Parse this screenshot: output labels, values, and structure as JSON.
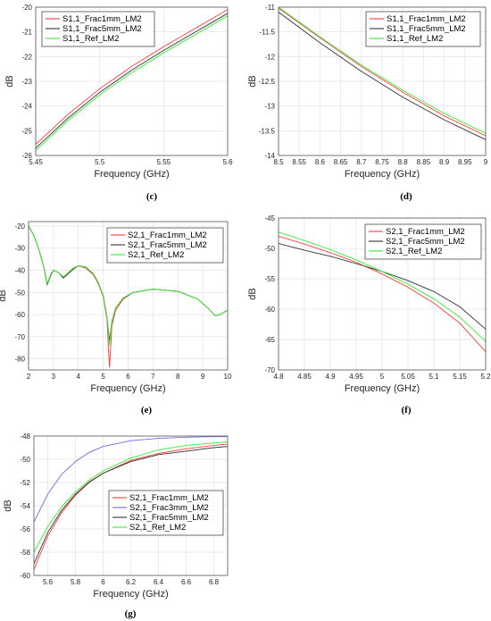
{
  "chart_data": [
    {
      "id": "c",
      "type": "line",
      "panel_label": "(c)",
      "xlabel": "Frequency (GHz)",
      "ylabel": "dB",
      "xlim": [
        5.45,
        5.6
      ],
      "ylim": [
        -26,
        -20
      ],
      "xticks": [
        5.45,
        5.5,
        5.55,
        5.6
      ],
      "xtick_labels": [
        "5.45",
        "5.5",
        "5.55",
        "5.6"
      ],
      "yticks": [
        -26,
        -25,
        -24,
        -23,
        -22,
        -21,
        -20
      ],
      "ytick_labels": [
        "-26",
        "-25",
        "-24",
        "-23",
        "-22",
        "-21",
        "-20"
      ],
      "grid": true,
      "legend_position": "top-left",
      "series": [
        {
          "name": "S1,1_Frac1mm_LM2",
          "color": "#ff3b3b",
          "x": [
            5.45,
            5.475,
            5.5,
            5.525,
            5.55,
            5.575,
            5.6
          ],
          "y": [
            -25.55,
            -24.35,
            -23.3,
            -22.4,
            -21.6,
            -20.85,
            -20.1
          ]
        },
        {
          "name": "S1,1_Frac5mm_LM2",
          "color": "#333333",
          "x": [
            5.45,
            5.475,
            5.5,
            5.525,
            5.55,
            5.575,
            5.6
          ],
          "y": [
            -25.7,
            -24.5,
            -23.45,
            -22.55,
            -21.75,
            -21.0,
            -20.25
          ]
        },
        {
          "name": "S1,1_Ref_LM2",
          "color": "#33ee33",
          "x": [
            5.45,
            5.475,
            5.5,
            5.525,
            5.55,
            5.575,
            5.6
          ],
          "y": [
            -25.8,
            -24.6,
            -23.55,
            -22.65,
            -21.85,
            -21.1,
            -20.35
          ]
        }
      ]
    },
    {
      "id": "d",
      "type": "line",
      "panel_label": "(d)",
      "xlabel": "Frequency (GHz)",
      "ylabel": "dB",
      "xlim": [
        8.5,
        9
      ],
      "ylim": [
        -14,
        -11
      ],
      "xticks": [
        8.5,
        8.55,
        8.6,
        8.65,
        8.7,
        8.75,
        8.8,
        8.85,
        8.9,
        8.95,
        9
      ],
      "xtick_labels": [
        "8.5",
        "8.55",
        "8.6",
        "8.65",
        "8.7",
        "8.75",
        "8.8",
        "8.85",
        "8.9",
        "8.95",
        "9"
      ],
      "yticks": [
        -14,
        -13.5,
        -13,
        -12.5,
        -12,
        -11.5,
        -11
      ],
      "ytick_labels": [
        "-14",
        "-13.5",
        "-13",
        "-12.5",
        "-12",
        "-11.5",
        "-11"
      ],
      "grid": true,
      "legend_position": "top-right",
      "series": [
        {
          "name": "S1,1_Frac1mm_LM2",
          "color": "#ff3b3b",
          "x": [
            8.5,
            8.6,
            8.7,
            8.8,
            8.9,
            9.0
          ],
          "y": [
            -11.02,
            -11.62,
            -12.2,
            -12.72,
            -13.2,
            -13.6
          ]
        },
        {
          "name": "S1,1_Frac5mm_LM2",
          "color": "#333333",
          "x": [
            8.5,
            8.6,
            8.7,
            8.8,
            8.9,
            9.0
          ],
          "y": [
            -11.1,
            -11.72,
            -12.3,
            -12.82,
            -13.28,
            -13.68
          ]
        },
        {
          "name": "S1,1_Ref_LM2",
          "color": "#33ee33",
          "x": [
            8.5,
            8.6,
            8.7,
            8.8,
            8.9,
            9.0
          ],
          "y": [
            -11.0,
            -11.6,
            -12.17,
            -12.68,
            -13.15,
            -13.55
          ]
        }
      ]
    },
    {
      "id": "e",
      "type": "line",
      "panel_label": "(e)",
      "xlabel": "Frequency (GHz)",
      "ylabel": "dB",
      "xlim": [
        2,
        10
      ],
      "ylim": [
        -85,
        -18
      ],
      "xticks": [
        2,
        3,
        4,
        5,
        6,
        7,
        8,
        9,
        10
      ],
      "xtick_labels": [
        "2",
        "3",
        "4",
        "5",
        "6",
        "7",
        "8",
        "9",
        "10"
      ],
      "yticks": [
        -80,
        -70,
        -60,
        -50,
        -40,
        -30,
        -20
      ],
      "ytick_labels": [
        "-80",
        "-70",
        "-60",
        "-50",
        "-40",
        "-30",
        "-20"
      ],
      "grid": true,
      "legend_position": "top-right",
      "series": [
        {
          "name": "S2,1_Frac1mm_LM2",
          "color": "#ff3b3b",
          "x": [
            2,
            2.2,
            2.4,
            2.6,
            2.75,
            2.9,
            3.0,
            3.2,
            3.4,
            3.6,
            3.8,
            4.0,
            4.3,
            4.6,
            4.8,
            5.0,
            5.15,
            5.25,
            5.35,
            5.5,
            5.8,
            6.2,
            7.0,
            8.0,
            8.8,
            9.2,
            9.5,
            9.7,
            10
          ],
          "y": [
            -20,
            -24,
            -30,
            -38,
            -46,
            -42,
            -40,
            -41,
            -43,
            -41,
            -39,
            -38,
            -39,
            -42,
            -46,
            -52,
            -62,
            -84,
            -65,
            -58,
            -53,
            -50,
            -48.5,
            -49.5,
            -53,
            -57,
            -60.5,
            -60,
            -58
          ]
        },
        {
          "name": "S2,1_Frac5mm_LM2",
          "color": "#333333",
          "x": [
            2,
            2.2,
            2.4,
            2.6,
            2.75,
            2.9,
            3.0,
            3.2,
            3.4,
            3.6,
            3.8,
            4.0,
            4.3,
            4.6,
            4.8,
            5.0,
            5.15,
            5.25,
            5.35,
            5.5,
            5.8,
            6.2,
            7.0,
            8.0,
            8.8,
            9.2,
            9.5,
            9.7,
            10
          ],
          "y": [
            -20,
            -24,
            -30,
            -38,
            -46.5,
            -42,
            -40,
            -41,
            -43.5,
            -41.5,
            -39.5,
            -38,
            -38.5,
            -41.5,
            -45.5,
            -51.5,
            -61,
            -72,
            -63,
            -57,
            -52.5,
            -50,
            -48.5,
            -49.5,
            -53,
            -57,
            -60.5,
            -60,
            -58
          ]
        },
        {
          "name": "S2,1_Ref_LM2",
          "color": "#33ee33",
          "x": [
            2,
            2.2,
            2.4,
            2.6,
            2.75,
            2.9,
            3.0,
            3.2,
            3.4,
            3.6,
            3.8,
            4.0,
            4.3,
            4.6,
            4.8,
            5.0,
            5.15,
            5.25,
            5.35,
            5.5,
            5.8,
            6.2,
            7.0,
            8.0,
            8.8,
            9.2,
            9.5,
            9.7,
            10
          ],
          "y": [
            -20,
            -24,
            -30,
            -38,
            -46,
            -41.5,
            -40,
            -41,
            -43,
            -41,
            -39,
            -38,
            -38.5,
            -41.5,
            -45.5,
            -51.5,
            -61,
            -74,
            -63,
            -57,
            -52.5,
            -50,
            -48.5,
            -49.5,
            -53,
            -57,
            -60.5,
            -60,
            -58
          ]
        }
      ]
    },
    {
      "id": "f",
      "type": "line",
      "panel_label": "(f)",
      "xlabel": "Frequency (GHz)",
      "ylabel": "dB",
      "xlim": [
        4.8,
        5.2
      ],
      "ylim": [
        -70,
        -45
      ],
      "xticks": [
        4.8,
        4.85,
        4.9,
        4.95,
        5,
        5.05,
        5.1,
        5.15,
        5.2
      ],
      "xtick_labels": [
        "4.8",
        "4.85",
        "4.9",
        "4.95",
        "5",
        "5.05",
        "5.1",
        "5.15",
        "5.2"
      ],
      "yticks": [
        -70,
        -65,
        -60,
        -55,
        -50,
        -45
      ],
      "ytick_labels": [
        "-70",
        "-65",
        "-60",
        "-55",
        "-50",
        "-45"
      ],
      "grid": true,
      "legend_position": "top-right",
      "series": [
        {
          "name": "S2,1_Frac1mm_LM2",
          "color": "#ff3b3b",
          "x": [
            4.8,
            4.85,
            4.9,
            4.95,
            5.0,
            5.05,
            5.1,
            5.15,
            5.2
          ],
          "y": [
            -48.0,
            -49.3,
            -50.7,
            -52.3,
            -54.2,
            -56.4,
            -59.0,
            -62.3,
            -67.0
          ]
        },
        {
          "name": "S2,1_Frac5mm_LM2",
          "color": "#333333",
          "x": [
            4.8,
            4.85,
            4.9,
            4.95,
            5.0,
            5.05,
            5.1,
            5.15,
            5.2
          ],
          "y": [
            -49.2,
            -50.3,
            -51.3,
            -52.5,
            -53.8,
            -55.3,
            -57.1,
            -59.6,
            -63.3
          ]
        },
        {
          "name": "S2,1_Ref_LM2",
          "color": "#33ee33",
          "x": [
            4.8,
            4.85,
            4.9,
            4.95,
            5.0,
            5.05,
            5.1,
            5.15,
            5.2
          ],
          "y": [
            -47.3,
            -48.7,
            -50.2,
            -51.9,
            -53.8,
            -55.9,
            -58.3,
            -61.3,
            -65.3
          ]
        }
      ]
    },
    {
      "id": "g",
      "type": "line",
      "panel_label": "(g)",
      "xlabel": "Frequency (GHz)",
      "ylabel": "dB",
      "xlim": [
        5.5,
        6.9
      ],
      "ylim": [
        -60,
        -48
      ],
      "xticks": [
        5.6,
        5.8,
        6,
        6.2,
        6.4,
        6.6,
        6.8
      ],
      "xtick_labels": [
        "5.6",
        "5.8",
        "6",
        "6.2",
        "6.4",
        "6.6",
        "6.8"
      ],
      "yticks": [
        -60,
        -58,
        -56,
        -54,
        -52,
        -50,
        -48
      ],
      "ytick_labels": [
        "-60",
        "-58",
        "-56",
        "-54",
        "-52",
        "-50",
        "-48"
      ],
      "grid": true,
      "legend_position": "bottom-right",
      "series": [
        {
          "name": "S2,1_Frac1mm_LM2",
          "color": "#ff3b3b",
          "x": [
            5.5,
            5.6,
            5.7,
            5.8,
            5.9,
            6.0,
            6.2,
            6.4,
            6.6,
            6.8,
            6.9
          ],
          "y": [
            -59.5,
            -56.6,
            -54.6,
            -53.1,
            -52.0,
            -51.2,
            -50.1,
            -49.5,
            -49.1,
            -48.8,
            -48.7
          ]
        },
        {
          "name": "S2,1_Frac3mm_LM2",
          "color": "#6b6bea",
          "x": [
            5.5,
            5.6,
            5.7,
            5.8,
            5.9,
            6.0,
            6.2,
            6.4,
            6.6,
            6.8,
            6.9
          ],
          "y": [
            -55.4,
            -53.0,
            -51.3,
            -50.2,
            -49.4,
            -48.9,
            -48.4,
            -48.2,
            -48.1,
            -48.05,
            -48.05
          ]
        },
        {
          "name": "S2,1_Frac5mm_LM2",
          "color": "#333333",
          "x": [
            5.5,
            5.6,
            5.7,
            5.8,
            5.9,
            6.0,
            6.2,
            6.4,
            6.6,
            6.8,
            6.9
          ],
          "y": [
            -59.0,
            -56.3,
            -54.4,
            -53.0,
            -51.95,
            -51.2,
            -50.2,
            -49.6,
            -49.3,
            -49.0,
            -48.9
          ]
        },
        {
          "name": "S2,1_Ref_LM2",
          "color": "#33ee33",
          "x": [
            5.5,
            5.6,
            5.7,
            5.8,
            5.9,
            6.0,
            6.2,
            6.4,
            6.6,
            6.8,
            6.9
          ],
          "y": [
            -58.0,
            -55.8,
            -54.1,
            -52.8,
            -51.8,
            -51.0,
            -49.9,
            -49.2,
            -48.8,
            -48.6,
            -48.5
          ]
        }
      ]
    }
  ]
}
